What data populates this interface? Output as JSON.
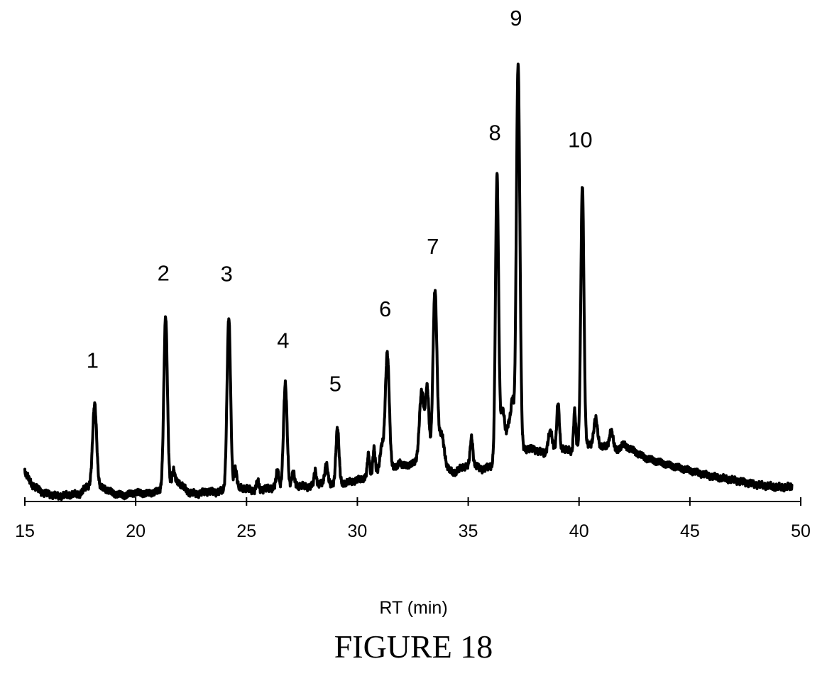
{
  "figure": {
    "caption": "FIGURE 18"
  },
  "chart_data": {
    "type": "line",
    "title": "",
    "xlabel": "RT (min)",
    "ylabel": "",
    "xlim": [
      15,
      50
    ],
    "ylim": [
      0,
      100
    ],
    "xticks": [
      15,
      20,
      25,
      30,
      35,
      40,
      45,
      50
    ],
    "grid": false,
    "line_color": "#000000",
    "peak_annotations": [
      {
        "label": "1",
        "x": 18.15,
        "y": 21.8
      },
      {
        "label": "2",
        "x": 21.35,
        "y": 41.4
      },
      {
        "label": "3",
        "x": 24.2,
        "y": 41.2
      },
      {
        "label": "4",
        "x": 26.75,
        "y": 26.2
      },
      {
        "label": "5",
        "x": 29.1,
        "y": 16.5
      },
      {
        "label": "6",
        "x": 31.35,
        "y": 33.3
      },
      {
        "label": "7",
        "x": 33.5,
        "y": 47.4
      },
      {
        "label": "8",
        "x": 36.3,
        "y": 73.0
      },
      {
        "label": "9",
        "x": 37.25,
        "y": 98.7
      },
      {
        "label": "10",
        "x": 40.15,
        "y": 71.4
      }
    ],
    "baseline": [
      [
        15.0,
        6.7
      ],
      [
        15.3,
        3.9
      ],
      [
        15.8,
        2.0
      ],
      [
        16.5,
        1.2
      ],
      [
        17.0,
        1.5
      ],
      [
        17.5,
        1.7
      ],
      [
        17.8,
        3.5
      ],
      [
        18.6,
        3.0
      ],
      [
        19.0,
        1.8
      ],
      [
        19.5,
        1.3
      ],
      [
        20.0,
        2.0
      ],
      [
        20.5,
        1.8
      ],
      [
        21.0,
        2.3
      ],
      [
        21.9,
        4.5
      ],
      [
        22.4,
        2.0
      ],
      [
        22.8,
        1.7
      ],
      [
        23.2,
        2.3
      ],
      [
        23.6,
        2.1
      ],
      [
        24.8,
        3.1
      ],
      [
        25.3,
        2.5
      ],
      [
        25.8,
        2.8
      ],
      [
        26.3,
        3.2
      ],
      [
        27.3,
        3.6
      ],
      [
        27.8,
        3.3
      ],
      [
        28.3,
        4.0
      ],
      [
        28.8,
        3.6
      ],
      [
        29.6,
        4.3
      ],
      [
        30.0,
        4.8
      ],
      [
        30.4,
        5.5
      ],
      [
        30.8,
        6.4
      ],
      [
        32.1,
        8.0
      ],
      [
        32.5,
        8.5
      ],
      [
        32.8,
        9.3
      ],
      [
        34.4,
        6.5
      ],
      [
        34.8,
        7.8
      ],
      [
        35.3,
        8.0
      ],
      [
        35.7,
        7.2
      ],
      [
        36.0,
        8.0
      ],
      [
        37.7,
        12.0
      ],
      [
        38.1,
        11.5
      ],
      [
        38.5,
        10.6
      ],
      [
        38.8,
        11.0
      ],
      [
        39.3,
        12.0
      ],
      [
        39.7,
        11.0
      ],
      [
        40.0,
        12.0
      ],
      [
        40.6,
        13.0
      ],
      [
        41.0,
        12.5
      ],
      [
        41.7,
        11.5
      ],
      [
        42.0,
        12.8
      ],
      [
        43.0,
        9.8
      ],
      [
        44.0,
        8.2
      ],
      [
        45.0,
        7.0
      ],
      [
        46.0,
        5.6
      ],
      [
        47.0,
        4.8
      ],
      [
        48.0,
        3.8
      ],
      [
        49.0,
        3.2
      ],
      [
        49.6,
        3.3
      ]
    ],
    "peaks": [
      {
        "x": 18.15,
        "y": 21.8,
        "w": 0.09
      },
      {
        "x": 21.35,
        "y": 41.4,
        "w": 0.08
      },
      {
        "x": 21.7,
        "y": 7.0,
        "w": 0.06
      },
      {
        "x": 24.2,
        "y": 41.2,
        "w": 0.08
      },
      {
        "x": 24.5,
        "y": 7.5,
        "w": 0.06
      },
      {
        "x": 25.5,
        "y": 4.6,
        "w": 0.05
      },
      {
        "x": 26.4,
        "y": 7.0,
        "w": 0.06
      },
      {
        "x": 26.75,
        "y": 26.2,
        "w": 0.08
      },
      {
        "x": 27.1,
        "y": 6.5,
        "w": 0.06
      },
      {
        "x": 28.1,
        "y": 7.0,
        "w": 0.05
      },
      {
        "x": 28.6,
        "y": 8.5,
        "w": 0.07
      },
      {
        "x": 29.1,
        "y": 16.5,
        "w": 0.07
      },
      {
        "x": 30.5,
        "y": 10.5,
        "w": 0.05
      },
      {
        "x": 30.75,
        "y": 12.0,
        "w": 0.05
      },
      {
        "x": 31.1,
        "y": 12.5,
        "w": 0.08
      },
      {
        "x": 31.35,
        "y": 33.3,
        "w": 0.09
      },
      {
        "x": 31.9,
        "y": 9.0,
        "w": 0.06
      },
      {
        "x": 32.9,
        "y": 24.5,
        "w": 0.1
      },
      {
        "x": 33.15,
        "y": 25.5,
        "w": 0.08
      },
      {
        "x": 33.5,
        "y": 47.4,
        "w": 0.09
      },
      {
        "x": 33.8,
        "y": 15.0,
        "w": 0.12
      },
      {
        "x": 34.7,
        "y": 7.7,
        "w": 0.06
      },
      {
        "x": 35.15,
        "y": 14.5,
        "w": 0.06
      },
      {
        "x": 36.3,
        "y": 73.0,
        "w": 0.07
      },
      {
        "x": 36.55,
        "y": 20.5,
        "w": 0.1
      },
      {
        "x": 36.85,
        "y": 18.0,
        "w": 0.1
      },
      {
        "x": 37.25,
        "y": 98.7,
        "w": 0.08
      },
      {
        "x": 37.0,
        "y": 20.0,
        "w": 0.06
      },
      {
        "x": 38.7,
        "y": 15.5,
        "w": 0.1
      },
      {
        "x": 39.05,
        "y": 22.0,
        "w": 0.06
      },
      {
        "x": 39.8,
        "y": 20.5,
        "w": 0.05
      },
      {
        "x": 40.15,
        "y": 71.4,
        "w": 0.07
      },
      {
        "x": 40.75,
        "y": 18.5,
        "w": 0.08
      },
      {
        "x": 41.45,
        "y": 16.0,
        "w": 0.08
      }
    ]
  }
}
